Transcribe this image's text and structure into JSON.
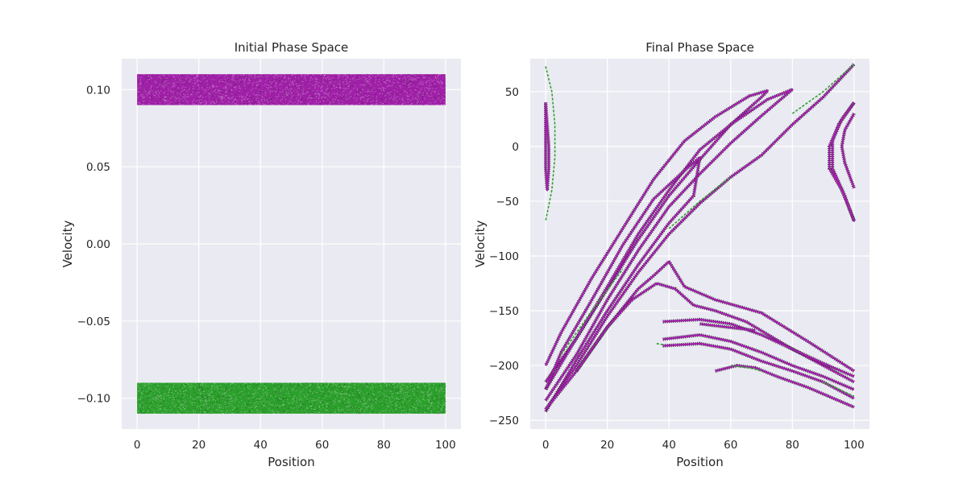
{
  "colors": {
    "background": "#eaeaf2",
    "grid": "#ffffff",
    "magenta": "#a020a8",
    "green": "#2ca02c",
    "dark": "#1a1a1a"
  },
  "chart_data": [
    {
      "type": "scatter",
      "title": "Initial Phase Space",
      "xlabel": "Position",
      "ylabel": "Velocity",
      "xlim": [
        -5,
        105
      ],
      "ylim": [
        -0.12,
        0.12
      ],
      "xticks": [
        0,
        20,
        40,
        60,
        80,
        100
      ],
      "xtick_labels": [
        "0",
        "20",
        "40",
        "60",
        "80",
        "100"
      ],
      "yticks": [
        0.1,
        0.05,
        0.0,
        -0.05,
        -0.1
      ],
      "ytick_labels": [
        "0.10",
        "0.05",
        "0.00",
        "−0.05",
        "−0.10"
      ],
      "grid": true,
      "series": [
        {
          "color": "magenta",
          "values": [
            {
              "x_range": [
                0,
                100
              ],
              "y_range": [
                0.09,
                0.11
              ]
            }
          ]
        },
        {
          "color": "green",
          "values": [
            {
              "x_range": [
                0,
                100
              ],
              "y_range": [
                -0.11,
                -0.09
              ]
            }
          ]
        }
      ]
    },
    {
      "type": "scatter",
      "title": "Final Phase Space",
      "xlabel": "Position",
      "ylabel": "Velocity",
      "xlim": [
        -5,
        105
      ],
      "ylim": [
        -258,
        80
      ],
      "xticks": [
        0,
        20,
        40,
        60,
        80,
        100
      ],
      "xtick_labels": [
        "0",
        "20",
        "40",
        "60",
        "80",
        "100"
      ],
      "yticks": [
        50,
        0,
        -50,
        -100,
        -150,
        -200,
        -250
      ],
      "ytick_labels": [
        "50",
        "0",
        "−50",
        "−100",
        "−150",
        "−200",
        "−250"
      ],
      "grid": true,
      "series": [
        {
          "color": "magenta",
          "curves": [
            [
              [
                0,
                -215
              ],
              [
                10,
                -175
              ],
              [
                20,
                -130
              ],
              [
                30,
                -85
              ],
              [
                40,
                -45
              ],
              [
                50,
                -12
              ],
              [
                60,
                20
              ],
              [
                70,
                45
              ],
              [
                72,
                51
              ],
              [
                66,
                46
              ],
              [
                55,
                27
              ],
              [
                45,
                5
              ],
              [
                35,
                -30
              ],
              [
                25,
                -75
              ],
              [
                15,
                -120
              ],
              [
                5,
                -170
              ],
              [
                0,
                -200
              ]
            ],
            [
              [
                0,
                -232
              ],
              [
                10,
                -190
              ],
              [
                20,
                -140
              ],
              [
                30,
                -95
              ],
              [
                40,
                -55
              ],
              [
                50,
                -25
              ],
              [
                60,
                3
              ],
              [
                70,
                28
              ],
              [
                80,
                52
              ],
              [
                72,
                43
              ],
              [
                60,
                20
              ],
              [
                50,
                -3
              ],
              [
                40,
                -40
              ],
              [
                30,
                -80
              ],
              [
                20,
                -128
              ],
              [
                10,
                -175
              ],
              [
                0,
                -222
              ]
            ],
            [
              [
                0,
                -242
              ],
              [
                10,
                -195
              ],
              [
                20,
                -150
              ],
              [
                30,
                -108
              ],
              [
                40,
                -70
              ],
              [
                48,
                -45
              ],
              [
                50,
                -10
              ],
              [
                45,
                -22
              ],
              [
                35,
                -48
              ],
              [
                25,
                -90
              ],
              [
                15,
                -140
              ],
              [
                5,
                -188
              ],
              [
                0,
                -222
              ]
            ],
            [
              [
                0,
                -240
              ],
              [
                10,
                -200
              ],
              [
                20,
                -155
              ],
              [
                30,
                -115
              ],
              [
                40,
                -80
              ],
              [
                50,
                -52
              ],
              [
                60,
                -28
              ],
              [
                70,
                -8
              ],
              [
                80,
                20
              ],
              [
                90,
                45
              ],
              [
                100,
                75
              ]
            ],
            [
              [
                0,
                -240
              ],
              [
                10,
                -205
              ],
              [
                20,
                -165
              ],
              [
                30,
                -130
              ],
              [
                35,
                -118
              ],
              [
                40,
                -105
              ],
              [
                45,
                -128
              ],
              [
                55,
                -140
              ],
              [
                70,
                -152
              ],
              [
                85,
                -178
              ],
              [
                100,
                -205
              ]
            ],
            [
              [
                10,
                -205
              ],
              [
                20,
                -165
              ],
              [
                28,
                -140
              ],
              [
                36,
                -125
              ],
              [
                42,
                -130
              ],
              [
                48,
                -145
              ],
              [
                55,
                -150
              ],
              [
                65,
                -160
              ],
              [
                80,
                -185
              ],
              [
                100,
                -215
              ]
            ],
            [
              [
                38,
                -160
              ],
              [
                50,
                -158
              ],
              [
                60,
                -162
              ],
              [
                70,
                -172
              ],
              [
                80,
                -185
              ],
              [
                90,
                -198
              ],
              [
                100,
                -210
              ]
            ],
            [
              [
                38,
                -176
              ],
              [
                50,
                -172
              ],
              [
                60,
                -178
              ],
              [
                70,
                -188
              ],
              [
                80,
                -200
              ],
              [
                90,
                -210
              ],
              [
                100,
                -222
              ]
            ],
            [
              [
                38,
                -182
              ],
              [
                50,
                -180
              ],
              [
                60,
                -185
              ],
              [
                70,
                -196
              ],
              [
                80,
                -205
              ],
              [
                90,
                -215
              ],
              [
                100,
                -230
              ]
            ],
            [
              [
                50,
                -162
              ],
              [
                56,
                -164
              ],
              [
                62,
                -166
              ],
              [
                68,
                -168
              ]
            ],
            [
              [
                55,
                -205
              ],
              [
                62,
                -200
              ],
              [
                68,
                -202
              ],
              [
                75,
                -210
              ],
              [
                85,
                -220
              ],
              [
                95,
                -232
              ],
              [
                100,
                -238
              ]
            ],
            [
              [
                0,
                40
              ],
              [
                0.5,
                20
              ],
              [
                1,
                0
              ],
              [
                1,
                -20
              ],
              [
                0.5,
                -40
              ],
              [
                0,
                -20
              ],
              [
                0,
                10
              ],
              [
                0,
                40
              ]
            ],
            [
              [
                100,
                40
              ],
              [
                95,
                20
              ],
              [
                92,
                0
              ],
              [
                92,
                -20
              ],
              [
                96,
                -40
              ],
              [
                100,
                -68
              ],
              [
                97,
                -45
              ],
              [
                93,
                -20
              ],
              [
                93,
                5
              ],
              [
                96,
                25
              ],
              [
                100,
                40
              ]
            ],
            [
              [
                100,
                30
              ],
              [
                97,
                15
              ],
              [
                96,
                0
              ],
              [
                97,
                -15
              ],
              [
                100,
                -38
              ]
            ]
          ]
        },
        {
          "color": "green",
          "curves": [
            [
              [
                0,
                73
              ],
              [
                2,
                50
              ],
              [
                3,
                20
              ],
              [
                3,
                -10
              ],
              [
                2,
                -40
              ],
              [
                0,
                -68
              ]
            ],
            [
              [
                80,
                30
              ],
              [
                90,
                50
              ],
              [
                100,
                75
              ]
            ],
            [
              [
                5,
                -190
              ],
              [
                15,
                -150
              ],
              [
                25,
                -112
              ]
            ],
            [
              [
                36,
                -180
              ],
              [
                38,
                -181
              ]
            ],
            [
              [
                60,
                -200
              ],
              [
                66,
                -202
              ],
              [
                70,
                -205
              ]
            ],
            [
              [
                90,
                -215
              ],
              [
                100,
                -228
              ]
            ],
            [
              [
                40,
                -75
              ],
              [
                50,
                -50
              ],
              [
                60,
                -28
              ]
            ]
          ]
        }
      ]
    }
  ]
}
